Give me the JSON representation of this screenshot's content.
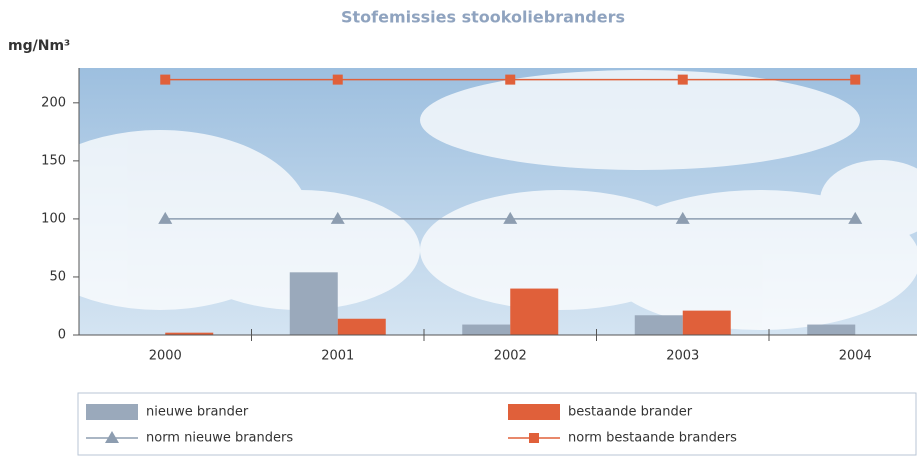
{
  "chart_data": {
    "type": "bar",
    "title": "Stofemissies stookoliebranders",
    "y_label": "mg/Nm³",
    "categories": [
      "2000",
      "2001",
      "2002",
      "2003",
      "2004"
    ],
    "series": [
      {
        "name": "nieuwe brander",
        "type": "bar",
        "color": "#9aa9bb",
        "values": [
          null,
          54,
          9,
          17,
          9
        ]
      },
      {
        "name": "bestaande brander",
        "type": "bar",
        "color": "#e0603a",
        "values": [
          2,
          14,
          40,
          21,
          null
        ]
      },
      {
        "name": "norm nieuwe branders",
        "type": "line",
        "marker": "triangle",
        "color": "#8d9db0",
        "values": [
          100,
          100,
          100,
          100,
          100
        ]
      },
      {
        "name": "norm bestaande branders",
        "type": "line",
        "marker": "square",
        "color": "#e0603a",
        "values": [
          220,
          220,
          220,
          220,
          220
        ]
      }
    ],
    "ylim": [
      0,
      230
    ],
    "yticks": [
      0,
      50,
      100,
      150,
      200
    ]
  }
}
